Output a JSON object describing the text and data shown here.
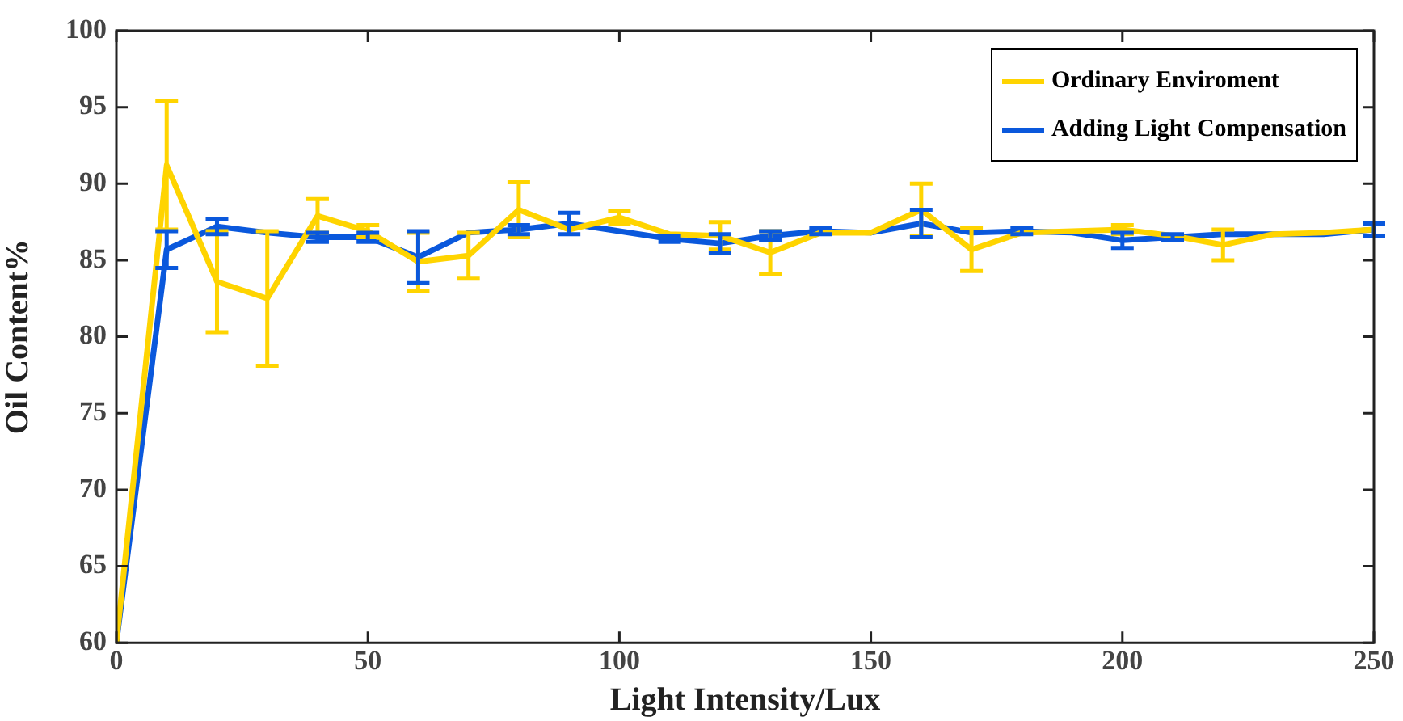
{
  "chart_data": {
    "type": "line",
    "xlabel": "Light Intensity/Lux",
    "ylabel": "Oil Content%",
    "x": [
      0,
      10,
      20,
      30,
      40,
      50,
      60,
      70,
      80,
      90,
      100,
      110,
      120,
      130,
      140,
      150,
      160,
      170,
      180,
      190,
      200,
      210,
      220,
      230,
      240,
      250
    ],
    "series": [
      {
        "name": "Ordinary Enviroment",
        "color": "#ffd400",
        "values": [
          60,
          91.2,
          83.6,
          82.5,
          87.9,
          86.9,
          84.9,
          85.3,
          88.3,
          87.0,
          87.8,
          86.7,
          86.6,
          85.5,
          86.8,
          86.8,
          88.3,
          85.7,
          86.8,
          86.9,
          87.0,
          86.6,
          86.0,
          86.7,
          86.8,
          87.0
        ],
        "errors": [
          null,
          4.2,
          3.3,
          4.4,
          1.1,
          0.4,
          1.9,
          1.5,
          1.8,
          null,
          0.4,
          null,
          0.9,
          1.4,
          null,
          null,
          1.7,
          1.4,
          null,
          null,
          0.3,
          null,
          1.0,
          null,
          null,
          null
        ]
      },
      {
        "name": "Adding Light Compensation",
        "color": "#0a58dc",
        "values": [
          60,
          85.7,
          87.2,
          86.8,
          86.5,
          86.5,
          85.2,
          86.8,
          87.0,
          87.4,
          86.9,
          86.4,
          86.1,
          86.6,
          86.9,
          86.8,
          87.4,
          86.8,
          86.9,
          86.8,
          86.3,
          86.5,
          86.7,
          86.7,
          86.7,
          87.0
        ],
        "errors": [
          null,
          1.2,
          0.5,
          null,
          0.3,
          0.3,
          1.7,
          null,
          0.3,
          0.7,
          null,
          0.2,
          0.6,
          0.3,
          0.2,
          null,
          0.9,
          null,
          0.2,
          null,
          0.5,
          0.2,
          null,
          null,
          null,
          0.4
        ]
      }
    ],
    "xlim": [
      0,
      250
    ],
    "xticks": [
      0,
      50,
      100,
      150,
      200,
      250
    ],
    "ylim": [
      60,
      100
    ],
    "yticks": [
      60,
      65,
      70,
      75,
      80,
      85,
      90,
      95,
      100
    ],
    "grid": false,
    "legend": "top right",
    "marker": "none",
    "line_style": "solid"
  }
}
